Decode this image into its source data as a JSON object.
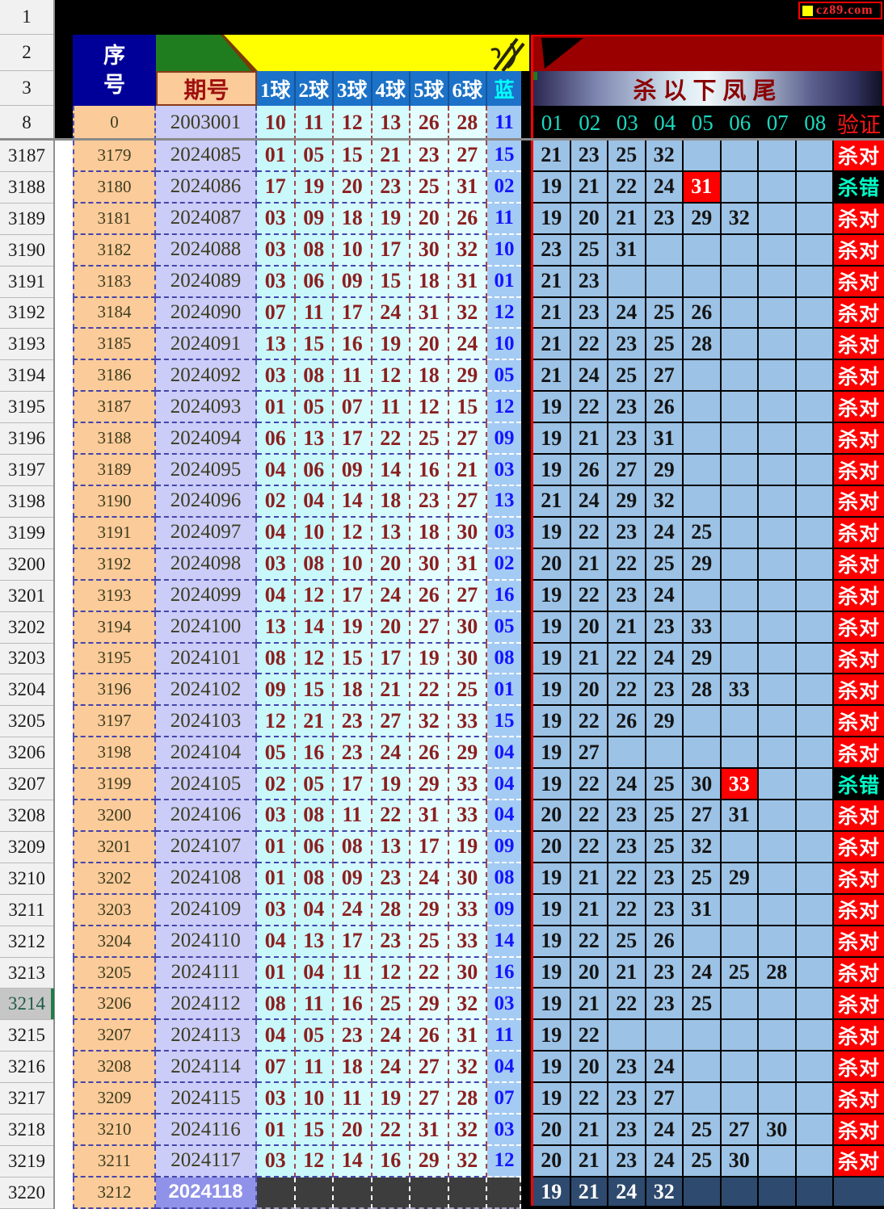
{
  "site_badge": {
    "text": "cz89.com"
  },
  "excel": {
    "header_gutter": [
      "1",
      "2",
      "3",
      "8"
    ],
    "selected_row": "3214"
  },
  "left_table": {
    "headers": {
      "seq_char1": "序",
      "seq_char2": "号",
      "period": "期号",
      "balls": [
        "1球",
        "2球",
        "3球",
        "4球",
        "5球",
        "6球"
      ],
      "blue": "蓝"
    },
    "seed_row": {
      "gutter": "8",
      "seq": "0",
      "period": "2003001",
      "balls": [
        "10",
        "11",
        "12",
        "13",
        "26",
        "28"
      ],
      "blue": "11"
    },
    "rows": [
      {
        "gutter": "3187",
        "seq": "3179",
        "period": "2024085",
        "balls": [
          "01",
          "05",
          "15",
          "21",
          "23",
          "27"
        ],
        "blue": "15"
      },
      {
        "gutter": "3188",
        "seq": "3180",
        "period": "2024086",
        "balls": [
          "17",
          "19",
          "20",
          "23",
          "25",
          "31"
        ],
        "blue": "02"
      },
      {
        "gutter": "3189",
        "seq": "3181",
        "period": "2024087",
        "balls": [
          "03",
          "09",
          "18",
          "19",
          "20",
          "26"
        ],
        "blue": "11"
      },
      {
        "gutter": "3190",
        "seq": "3182",
        "period": "2024088",
        "balls": [
          "03",
          "08",
          "10",
          "17",
          "30",
          "32"
        ],
        "blue": "10"
      },
      {
        "gutter": "3191",
        "seq": "3183",
        "period": "2024089",
        "balls": [
          "03",
          "06",
          "09",
          "15",
          "18",
          "31"
        ],
        "blue": "01"
      },
      {
        "gutter": "3192",
        "seq": "3184",
        "period": "2024090",
        "balls": [
          "07",
          "11",
          "17",
          "24",
          "31",
          "32"
        ],
        "blue": "12"
      },
      {
        "gutter": "3193",
        "seq": "3185",
        "period": "2024091",
        "balls": [
          "13",
          "15",
          "16",
          "19",
          "20",
          "24"
        ],
        "blue": "10"
      },
      {
        "gutter": "3194",
        "seq": "3186",
        "period": "2024092",
        "balls": [
          "03",
          "08",
          "11",
          "12",
          "18",
          "29"
        ],
        "blue": "05"
      },
      {
        "gutter": "3195",
        "seq": "3187",
        "period": "2024093",
        "balls": [
          "01",
          "05",
          "07",
          "11",
          "12",
          "15"
        ],
        "blue": "12"
      },
      {
        "gutter": "3196",
        "seq": "3188",
        "period": "2024094",
        "balls": [
          "06",
          "13",
          "17",
          "22",
          "25",
          "27"
        ],
        "blue": "09"
      },
      {
        "gutter": "3197",
        "seq": "3189",
        "period": "2024095",
        "balls": [
          "04",
          "06",
          "09",
          "14",
          "16",
          "21"
        ],
        "blue": "03"
      },
      {
        "gutter": "3198",
        "seq": "3190",
        "period": "2024096",
        "balls": [
          "02",
          "04",
          "14",
          "18",
          "23",
          "27"
        ],
        "blue": "13"
      },
      {
        "gutter": "3199",
        "seq": "3191",
        "period": "2024097",
        "balls": [
          "04",
          "10",
          "12",
          "13",
          "18",
          "30"
        ],
        "blue": "03"
      },
      {
        "gutter": "3200",
        "seq": "3192",
        "period": "2024098",
        "balls": [
          "03",
          "08",
          "10",
          "20",
          "30",
          "31"
        ],
        "blue": "02"
      },
      {
        "gutter": "3201",
        "seq": "3193",
        "period": "2024099",
        "balls": [
          "04",
          "12",
          "17",
          "24",
          "26",
          "27"
        ],
        "blue": "16"
      },
      {
        "gutter": "3202",
        "seq": "3194",
        "period": "2024100",
        "balls": [
          "13",
          "14",
          "19",
          "20",
          "27",
          "30"
        ],
        "blue": "05"
      },
      {
        "gutter": "3203",
        "seq": "3195",
        "period": "2024101",
        "balls": [
          "08",
          "12",
          "15",
          "17",
          "19",
          "30"
        ],
        "blue": "08"
      },
      {
        "gutter": "3204",
        "seq": "3196",
        "period": "2024102",
        "balls": [
          "09",
          "15",
          "18",
          "21",
          "22",
          "25"
        ],
        "blue": "01"
      },
      {
        "gutter": "3205",
        "seq": "3197",
        "period": "2024103",
        "balls": [
          "12",
          "21",
          "23",
          "27",
          "32",
          "33"
        ],
        "blue": "15"
      },
      {
        "gutter": "3206",
        "seq": "3198",
        "period": "2024104",
        "balls": [
          "05",
          "16",
          "23",
          "24",
          "26",
          "29"
        ],
        "blue": "04"
      },
      {
        "gutter": "3207",
        "seq": "3199",
        "period": "2024105",
        "balls": [
          "02",
          "05",
          "17",
          "19",
          "29",
          "33"
        ],
        "blue": "04"
      },
      {
        "gutter": "3208",
        "seq": "3200",
        "period": "2024106",
        "balls": [
          "03",
          "08",
          "11",
          "22",
          "31",
          "33"
        ],
        "blue": "04"
      },
      {
        "gutter": "3209",
        "seq": "3201",
        "period": "2024107",
        "balls": [
          "01",
          "06",
          "08",
          "13",
          "17",
          "19"
        ],
        "blue": "09"
      },
      {
        "gutter": "3210",
        "seq": "3202",
        "period": "2024108",
        "balls": [
          "01",
          "08",
          "09",
          "23",
          "24",
          "30"
        ],
        "blue": "08"
      },
      {
        "gutter": "3211",
        "seq": "3203",
        "period": "2024109",
        "balls": [
          "03",
          "04",
          "24",
          "28",
          "29",
          "33"
        ],
        "blue": "09"
      },
      {
        "gutter": "3212",
        "seq": "3204",
        "period": "2024110",
        "balls": [
          "04",
          "13",
          "17",
          "23",
          "25",
          "33"
        ],
        "blue": "14"
      },
      {
        "gutter": "3213",
        "seq": "3205",
        "period": "2024111",
        "balls": [
          "01",
          "04",
          "11",
          "12",
          "22",
          "30"
        ],
        "blue": "16"
      },
      {
        "gutter": "3214",
        "seq": "3206",
        "period": "2024112",
        "balls": [
          "08",
          "11",
          "16",
          "25",
          "29",
          "32"
        ],
        "blue": "03"
      },
      {
        "gutter": "3215",
        "seq": "3207",
        "period": "2024113",
        "balls": [
          "04",
          "05",
          "23",
          "24",
          "26",
          "31"
        ],
        "blue": "11"
      },
      {
        "gutter": "3216",
        "seq": "3208",
        "period": "2024114",
        "balls": [
          "07",
          "11",
          "18",
          "24",
          "27",
          "32"
        ],
        "blue": "04"
      },
      {
        "gutter": "3217",
        "seq": "3209",
        "period": "2024115",
        "balls": [
          "03",
          "10",
          "11",
          "19",
          "27",
          "28"
        ],
        "blue": "07"
      },
      {
        "gutter": "3218",
        "seq": "3210",
        "period": "2024116",
        "balls": [
          "01",
          "15",
          "20",
          "22",
          "31",
          "32"
        ],
        "blue": "03"
      },
      {
        "gutter": "3219",
        "seq": "3211",
        "period": "2024117",
        "balls": [
          "03",
          "12",
          "14",
          "16",
          "29",
          "32"
        ],
        "blue": "12"
      },
      {
        "gutter": "3220",
        "seq": "3212",
        "period": "2024118",
        "balls": [],
        "blue": "",
        "pending": true
      }
    ]
  },
  "right_table": {
    "banner_title": "杀以下凤尾",
    "col_headers": [
      "01",
      "02",
      "03",
      "04",
      "05",
      "06",
      "07",
      "08"
    ],
    "verify_header": "验证",
    "verdict_labels": {
      "correct": "杀对",
      "wrong": "杀错"
    },
    "rows": [
      {
        "kills": [
          "21",
          "23",
          "25",
          "32"
        ],
        "red": null,
        "verdict": "correct"
      },
      {
        "kills": [
          "19",
          "21",
          "22",
          "24",
          "31"
        ],
        "red": 4,
        "verdict": "wrong"
      },
      {
        "kills": [
          "19",
          "20",
          "21",
          "23",
          "29",
          "32"
        ],
        "red": null,
        "verdict": "correct"
      },
      {
        "kills": [
          "23",
          "25",
          "31"
        ],
        "red": null,
        "verdict": "correct"
      },
      {
        "kills": [
          "21",
          "23"
        ],
        "red": null,
        "verdict": "correct"
      },
      {
        "kills": [
          "21",
          "23",
          "24",
          "25",
          "26"
        ],
        "red": null,
        "verdict": "correct"
      },
      {
        "kills": [
          "21",
          "22",
          "23",
          "25",
          "28"
        ],
        "red": null,
        "verdict": "correct"
      },
      {
        "kills": [
          "21",
          "24",
          "25",
          "27"
        ],
        "red": null,
        "verdict": "correct"
      },
      {
        "kills": [
          "19",
          "22",
          "23",
          "26"
        ],
        "red": null,
        "verdict": "correct"
      },
      {
        "kills": [
          "19",
          "21",
          "23",
          "31"
        ],
        "red": null,
        "verdict": "correct"
      },
      {
        "kills": [
          "19",
          "26",
          "27",
          "29"
        ],
        "red": null,
        "verdict": "correct"
      },
      {
        "kills": [
          "21",
          "24",
          "29",
          "32"
        ],
        "red": null,
        "verdict": "correct"
      },
      {
        "kills": [
          "19",
          "22",
          "23",
          "24",
          "25"
        ],
        "red": null,
        "verdict": "correct"
      },
      {
        "kills": [
          "20",
          "21",
          "22",
          "25",
          "29"
        ],
        "red": null,
        "verdict": "correct"
      },
      {
        "kills": [
          "19",
          "22",
          "23",
          "24"
        ],
        "red": null,
        "verdict": "correct"
      },
      {
        "kills": [
          "19",
          "20",
          "21",
          "23",
          "33"
        ],
        "red": null,
        "verdict": "correct"
      },
      {
        "kills": [
          "19",
          "21",
          "22",
          "24",
          "29"
        ],
        "red": null,
        "verdict": "correct"
      },
      {
        "kills": [
          "19",
          "20",
          "22",
          "23",
          "28",
          "33"
        ],
        "red": null,
        "verdict": "correct"
      },
      {
        "kills": [
          "19",
          "22",
          "26",
          "29"
        ],
        "red": null,
        "verdict": "correct"
      },
      {
        "kills": [
          "19",
          "27"
        ],
        "red": null,
        "verdict": "correct"
      },
      {
        "kills": [
          "19",
          "22",
          "24",
          "25",
          "30",
          "33"
        ],
        "red": 5,
        "verdict": "wrong"
      },
      {
        "kills": [
          "20",
          "22",
          "23",
          "25",
          "27",
          "31"
        ],
        "red": null,
        "verdict": "correct"
      },
      {
        "kills": [
          "20",
          "22",
          "23",
          "25",
          "32"
        ],
        "red": null,
        "verdict": "correct"
      },
      {
        "kills": [
          "19",
          "21",
          "22",
          "23",
          "25",
          "29"
        ],
        "red": null,
        "verdict": "correct"
      },
      {
        "kills": [
          "19",
          "21",
          "22",
          "23",
          "31"
        ],
        "red": null,
        "verdict": "correct"
      },
      {
        "kills": [
          "19",
          "22",
          "25",
          "26"
        ],
        "red": null,
        "verdict": "correct"
      },
      {
        "kills": [
          "19",
          "20",
          "21",
          "23",
          "24",
          "25",
          "28"
        ],
        "red": null,
        "verdict": "correct"
      },
      {
        "kills": [
          "19",
          "21",
          "22",
          "23",
          "25"
        ],
        "red": null,
        "verdict": "correct"
      },
      {
        "kills": [
          "19",
          "22"
        ],
        "red": null,
        "verdict": "correct"
      },
      {
        "kills": [
          "19",
          "20",
          "23",
          "24"
        ],
        "red": null,
        "verdict": "correct"
      },
      {
        "kills": [
          "19",
          "22",
          "23",
          "27"
        ],
        "red": null,
        "verdict": "correct"
      },
      {
        "kills": [
          "20",
          "21",
          "23",
          "24",
          "25",
          "27",
          "30"
        ],
        "red": null,
        "verdict": "correct"
      },
      {
        "kills": [
          "20",
          "21",
          "23",
          "24",
          "25",
          "30"
        ],
        "red": null,
        "verdict": "correct"
      },
      {
        "kills": [
          "19",
          "21",
          "24",
          "32"
        ],
        "red": null,
        "verdict": null,
        "pending": true
      }
    ]
  },
  "colors": {
    "accent_red": "#ff0000",
    "maroon_banner": "#9a0000",
    "navy_header": "#000099",
    "green_ribbon": "#1f7c1f",
    "yellow_ribbon": "#ffff00",
    "kill_cell_blue": "#9cc2e5",
    "pending_navy": "#2e4a6e",
    "pending_gray": "#3d3d3d",
    "ball_text_red": "#8b1f1f",
    "blue_ball_text": "#1414ff"
  }
}
